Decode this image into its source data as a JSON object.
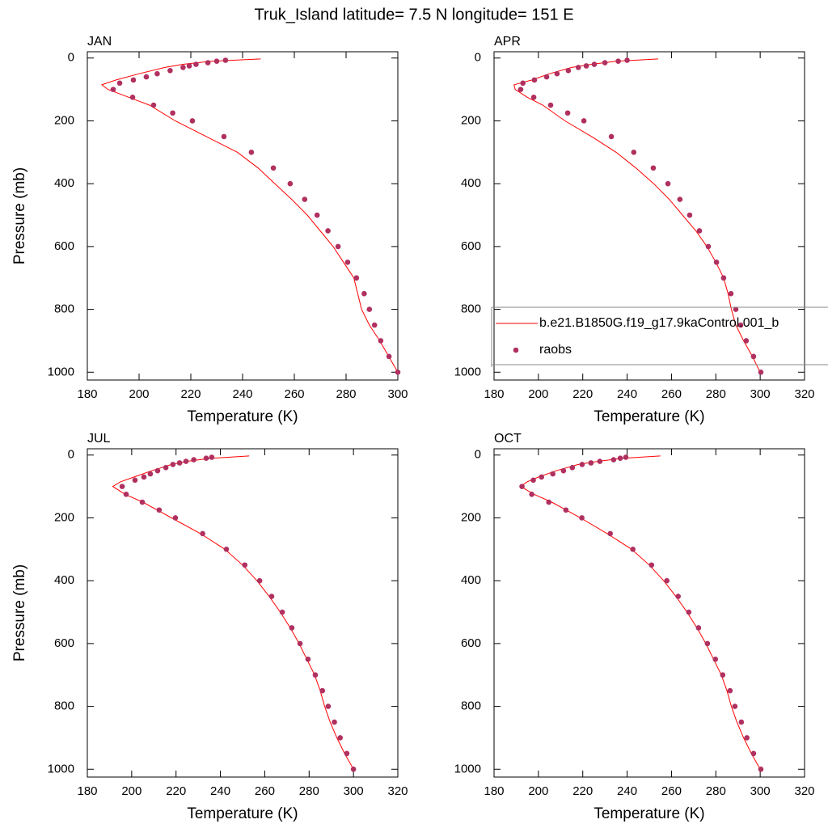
{
  "title": "Truk_Island  latitude= 7.5 N longitude= 151 E",
  "chart_data": [
    {
      "type": "line",
      "title": "JAN",
      "xlabel": "Temperature (K)",
      "ylabel": "Pressure (mb)",
      "xlim": [
        180,
        300
      ],
      "xticks": [
        180,
        200,
        220,
        240,
        260,
        280,
        300
      ],
      "ylim": [
        1025,
        -20
      ],
      "yticks": [
        0,
        200,
        400,
        600,
        800,
        1000
      ],
      "series": [
        {
          "color": "#ff0000",
          "style": "line",
          "x": [
            247,
            228,
            217,
            210,
            200,
            191,
            185.6,
            188,
            196,
            204,
            214,
            226,
            238,
            246,
            252.5,
            259,
            265,
            270,
            275,
            279,
            283,
            284.5,
            286,
            289,
            293,
            296.5,
            300
          ],
          "values": [
            3,
            10,
            20,
            30,
            50,
            70,
            85,
            100,
            125,
            150,
            200,
            250,
            300,
            350,
            400,
            450,
            500,
            550,
            600,
            650,
            700,
            750,
            800,
            850,
            900,
            950,
            1000
          ]
        },
        {
          "color": "#b03060",
          "style": "markers",
          "x": [
            233.4,
            230,
            226.6,
            222,
            219.4,
            217,
            212,
            207,
            202.8,
            197.8,
            192.5,
            190,
            197.5,
            205.6,
            213,
            220.6,
            232.8,
            243.4,
            251.9,
            258.4,
            264,
            268.8,
            273,
            276.9,
            280.6,
            284,
            287,
            289,
            291,
            293.4,
            296.6,
            300
          ],
          "values": [
            7,
            10,
            15,
            20,
            25,
            30,
            40,
            50,
            60,
            70,
            80,
            100,
            125,
            150,
            175,
            200,
            250,
            300,
            350,
            400,
            450,
            500,
            550,
            600,
            650,
            700,
            750,
            800,
            850,
            900,
            950,
            1000
          ]
        }
      ]
    },
    {
      "type": "line",
      "title": "APR",
      "xlabel": "Temperature (K)",
      "xlim": [
        180,
        320
      ],
      "xticks": [
        180,
        200,
        220,
        240,
        260,
        280,
        300,
        320
      ],
      "ylim": [
        1025,
        -20
      ],
      "yticks": [
        0,
        200,
        400,
        600,
        800,
        1000
      ],
      "legend": "lower right",
      "series": [
        {
          "name": "b.e21.B1850G.f19_g17.9kaControl.001_b",
          "color": "#ff0000",
          "style": "line",
          "x": [
            254,
            235,
            224,
            215,
            205,
            197,
            189,
            189.5,
            195,
            202,
            212,
            224,
            235,
            244,
            252,
            259,
            265,
            271,
            276,
            280,
            283.5,
            285.5,
            287,
            289,
            292.5,
            296.5,
            300
          ],
          "values": [
            3,
            10,
            20,
            30,
            50,
            70,
            85,
            100,
            125,
            150,
            200,
            250,
            300,
            350,
            400,
            450,
            500,
            550,
            600,
            650,
            700,
            750,
            800,
            850,
            900,
            950,
            1000
          ]
        },
        {
          "name": "raobs",
          "color": "#b03060",
          "style": "markers",
          "x": [
            240,
            236,
            230,
            225.2,
            221.6,
            218,
            213.5,
            208.4,
            203.7,
            198.2,
            193,
            192,
            197.9,
            205.5,
            213.2,
            220.5,
            232.9,
            243,
            251.8,
            258.4,
            263.8,
            268.2,
            272.6,
            276.6,
            280.3,
            283.5,
            286.8,
            289,
            291.2,
            293.7,
            297,
            300.3
          ],
          "values": [
            7,
            10,
            15,
            20,
            25,
            30,
            40,
            50,
            60,
            70,
            80,
            100,
            125,
            150,
            175,
            200,
            250,
            300,
            350,
            400,
            450,
            500,
            550,
            600,
            650,
            700,
            750,
            800,
            850,
            900,
            950,
            1000
          ]
        }
      ]
    },
    {
      "type": "line",
      "title": "JUL",
      "xlabel": "Temperature (K)",
      "ylabel": "Pressure (mb)",
      "xlim": [
        180,
        320
      ],
      "xticks": [
        180,
        200,
        220,
        240,
        260,
        280,
        300,
        320
      ],
      "ylim": [
        1025,
        -20
      ],
      "yticks": [
        0,
        200,
        400,
        600,
        800,
        1000
      ],
      "series": [
        {
          "color": "#ff0000",
          "style": "line",
          "x": [
            253,
            236,
            225,
            218,
            209,
            201,
            195,
            191.5,
            197,
            205,
            218,
            231,
            242,
            250,
            256.5,
            262,
            267,
            271.5,
            275.5,
            279,
            282.5,
            285,
            287,
            289.5,
            292.5,
            296,
            300
          ],
          "values": [
            3,
            10,
            20,
            30,
            50,
            70,
            85,
            100,
            125,
            150,
            200,
            250,
            300,
            350,
            400,
            450,
            500,
            550,
            600,
            650,
            700,
            750,
            800,
            850,
            900,
            950,
            1000
          ]
        },
        {
          "color": "#b03060",
          "style": "markers",
          "x": [
            236.1,
            233.6,
            228,
            224.5,
            221.6,
            218.6,
            215.4,
            211.7,
            208.4,
            205.5,
            201.5,
            195.7,
            197.5,
            204.8,
            212.4,
            219.7,
            232,
            242.7,
            251,
            257.7,
            263.1,
            267.9,
            272.2,
            275.9,
            279.5,
            282.8,
            286,
            288.6,
            291.4,
            294,
            297,
            300
          ],
          "values": [
            7,
            10,
            15,
            20,
            25,
            30,
            40,
            50,
            60,
            70,
            80,
            100,
            125,
            150,
            175,
            200,
            250,
            300,
            350,
            400,
            450,
            500,
            550,
            600,
            650,
            700,
            750,
            800,
            850,
            900,
            950,
            1000
          ]
        }
      ]
    },
    {
      "type": "line",
      "title": "OCT",
      "xlabel": "Temperature (K)",
      "xlim": [
        180,
        320
      ],
      "xticks": [
        180,
        200,
        220,
        240,
        260,
        280,
        300,
        320
      ],
      "ylim": [
        1025,
        -20
      ],
      "yticks": [
        0,
        200,
        400,
        600,
        800,
        1000
      ],
      "series": [
        {
          "color": "#ff0000",
          "style": "line",
          "x": [
            255,
            238,
            227,
            218,
            208,
            200,
            195,
            192,
            198,
            206,
            219,
            231,
            242,
            250,
            256.5,
            262,
            267,
            271.5,
            275.5,
            279,
            282.5,
            285,
            287,
            289.5,
            292.5,
            296,
            300
          ],
          "values": [
            3,
            10,
            20,
            30,
            50,
            70,
            85,
            100,
            125,
            150,
            200,
            250,
            300,
            350,
            400,
            450,
            500,
            550,
            600,
            650,
            700,
            750,
            800,
            850,
            900,
            950,
            1000
          ]
        },
        {
          "color": "#b03060",
          "style": "markers",
          "x": [
            239.4,
            236.9,
            233.9,
            227.7,
            223.7,
            219.7,
            215.3,
            211.3,
            206.5,
            201.4,
            197.7,
            192.6,
            197,
            204.7,
            212.4,
            219.6,
            232.4,
            242.6,
            251,
            257.9,
            263,
            267.8,
            272.2,
            276.2,
            279.8,
            283.1,
            286.4,
            288.6,
            291.5,
            294,
            297,
            300.3
          ],
          "values": [
            7,
            10,
            15,
            20,
            25,
            30,
            40,
            50,
            60,
            70,
            80,
            100,
            125,
            150,
            175,
            200,
            250,
            300,
            350,
            400,
            450,
            500,
            550,
            600,
            650,
            700,
            750,
            800,
            850,
            900,
            950,
            1000
          ]
        }
      ]
    }
  ]
}
